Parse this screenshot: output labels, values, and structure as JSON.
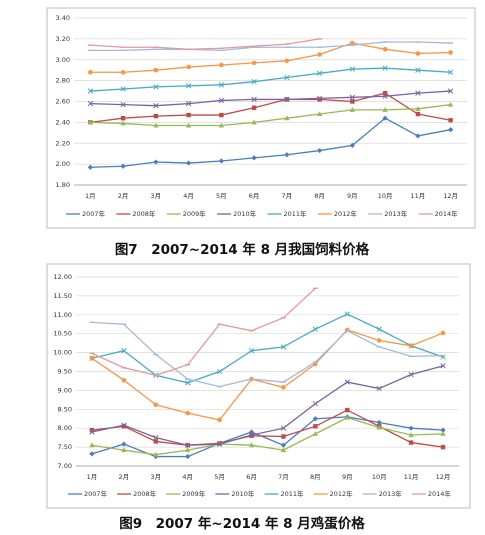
{
  "chart_data": [
    {
      "type": "line",
      "title": "图7　2007~2014 年 8 月我国饲料价格",
      "grid": true,
      "categories": [
        "1月",
        "2月",
        "3月",
        "4月",
        "5月",
        "6月",
        "7月",
        "8月",
        "9月",
        "10月",
        "11月",
        "12月"
      ],
      "ylim": [
        1.8,
        3.4
      ],
      "yticks": [
        {
          "value": 1.8,
          "label": "1.80"
        },
        {
          "value": 2.0,
          "label": "2.00"
        },
        {
          "value": 2.2,
          "label": "2.20"
        },
        {
          "value": 2.4,
          "label": "2.40"
        },
        {
          "value": 2.6,
          "label": "2.60"
        },
        {
          "value": 2.8,
          "label": "2.80"
        },
        {
          "value": 3.0,
          "label": "3.00"
        },
        {
          "value": 3.2,
          "label": "3.20"
        },
        {
          "value": 3.4,
          "label": "3.40"
        }
      ],
      "series": [
        {
          "name": "2007年",
          "color": "#4a7ebb",
          "marker": "diamond",
          "values": [
            1.97,
            1.98,
            2.02,
            2.01,
            2.03,
            2.06,
            2.09,
            2.13,
            2.18,
            2.44,
            2.27,
            2.33
          ]
        },
        {
          "name": "2008年",
          "color": "#be4b48",
          "marker": "square",
          "values": [
            2.4,
            2.44,
            2.46,
            2.47,
            2.47,
            2.54,
            2.62,
            2.62,
            2.6,
            2.68,
            2.48,
            2.42
          ]
        },
        {
          "name": "2009年",
          "color": "#98b954",
          "marker": "triangle",
          "values": [
            2.4,
            2.39,
            2.37,
            2.37,
            2.37,
            2.4,
            2.44,
            2.48,
            2.52,
            2.52,
            2.53,
            2.57
          ]
        },
        {
          "name": "2010年",
          "color": "#7d60a0",
          "marker": "x",
          "values": [
            2.58,
            2.57,
            2.56,
            2.58,
            2.61,
            2.62,
            2.62,
            2.63,
            2.64,
            2.65,
            2.68,
            2.7
          ]
        },
        {
          "name": "2011年",
          "color": "#46aac5",
          "marker": "x",
          "values": [
            2.7,
            2.72,
            2.74,
            2.75,
            2.76,
            2.79,
            2.83,
            2.87,
            2.91,
            2.92,
            2.9,
            2.88
          ]
        },
        {
          "name": "2012年",
          "color": "#f79646",
          "marker": "circle",
          "values": [
            2.88,
            2.88,
            2.9,
            2.93,
            2.95,
            2.97,
            2.99,
            3.05,
            3.16,
            3.1,
            3.06,
            3.07
          ]
        },
        {
          "name": "2013年",
          "color": "#a5b8dc",
          "marker": "dash",
          "values": [
            3.09,
            3.09,
            3.1,
            3.1,
            3.09,
            3.12,
            3.12,
            3.12,
            3.14,
            3.17,
            3.17,
            3.16
          ]
        },
        {
          "name": "2014年",
          "color": "#e39a9a",
          "marker": "dash",
          "values": [
            3.14,
            3.12,
            3.12,
            3.1,
            3.11,
            3.13,
            3.15,
            3.2,
            null,
            null,
            null,
            null
          ]
        }
      ]
    },
    {
      "type": "line",
      "title": "图9　2007 年~2014 年 8 月鸡蛋价格",
      "grid": true,
      "categories": [
        "1月",
        "2月",
        "3月",
        "4月",
        "5月",
        "6月",
        "7月",
        "8月",
        "9月",
        "10月",
        "11月",
        "12月"
      ],
      "ylim": [
        7.0,
        12.0
      ],
      "yticks": [
        {
          "value": 7.0,
          "label": "7.00"
        },
        {
          "value": 7.5,
          "label": "7.50"
        },
        {
          "value": 8.0,
          "label": "8.00"
        },
        {
          "value": 8.5,
          "label": "8.50"
        },
        {
          "value": 9.0,
          "label": "9.00"
        },
        {
          "value": 9.5,
          "label": "9.50"
        },
        {
          "value": 10.0,
          "label": "10.00"
        },
        {
          "value": 10.5,
          "label": "10.50"
        },
        {
          "value": 11.0,
          "label": "11.00"
        },
        {
          "value": 11.5,
          "label": "11.50"
        },
        {
          "value": 12.0,
          "label": "12.00"
        }
      ],
      "series": [
        {
          "name": "2007年",
          "color": "#4a7ebb",
          "marker": "diamond",
          "values": [
            7.32,
            7.58,
            7.25,
            7.25,
            7.6,
            7.9,
            7.55,
            8.25,
            8.3,
            8.15,
            8.0,
            7.95
          ]
        },
        {
          "name": "2008年",
          "color": "#be4b48",
          "marker": "square",
          "values": [
            7.95,
            8.05,
            7.65,
            7.55,
            7.6,
            7.8,
            7.78,
            8.05,
            8.48,
            8.05,
            7.62,
            7.5
          ]
        },
        {
          "name": "2009年",
          "color": "#98b954",
          "marker": "triangle",
          "values": [
            7.55,
            7.42,
            7.3,
            7.42,
            7.58,
            7.55,
            7.42,
            7.85,
            8.28,
            8.02,
            7.82,
            7.85
          ]
        },
        {
          "name": "2010年",
          "color": "#7d60a0",
          "marker": "x",
          "values": [
            7.9,
            8.08,
            7.75,
            7.55,
            7.58,
            7.82,
            8.0,
            8.65,
            9.22,
            9.05,
            9.42,
            9.65
          ]
        },
        {
          "name": "2011年",
          "color": "#46aac5",
          "marker": "x",
          "values": [
            9.85,
            10.05,
            9.4,
            9.2,
            9.5,
            10.05,
            10.15,
            10.62,
            11.02,
            10.62,
            10.18,
            9.88
          ]
        },
        {
          "name": "2012年",
          "color": "#f79646",
          "marker": "circle",
          "values": [
            9.85,
            9.27,
            8.62,
            8.4,
            8.22,
            9.3,
            9.08,
            9.7,
            10.6,
            10.32,
            10.18,
            10.52
          ]
        },
        {
          "name": "2013年",
          "color": "#a5b8dc",
          "marker": "dash",
          "values": [
            10.8,
            10.75,
            9.95,
            9.3,
            9.1,
            9.3,
            9.22,
            9.75,
            10.58,
            10.15,
            9.9,
            9.92
          ]
        },
        {
          "name": "2014年",
          "color": "#e39a9a",
          "marker": "dash",
          "values": [
            9.98,
            9.6,
            9.4,
            9.68,
            10.75,
            10.58,
            10.92,
            11.7,
            null,
            null,
            null,
            null
          ]
        }
      ]
    }
  ]
}
